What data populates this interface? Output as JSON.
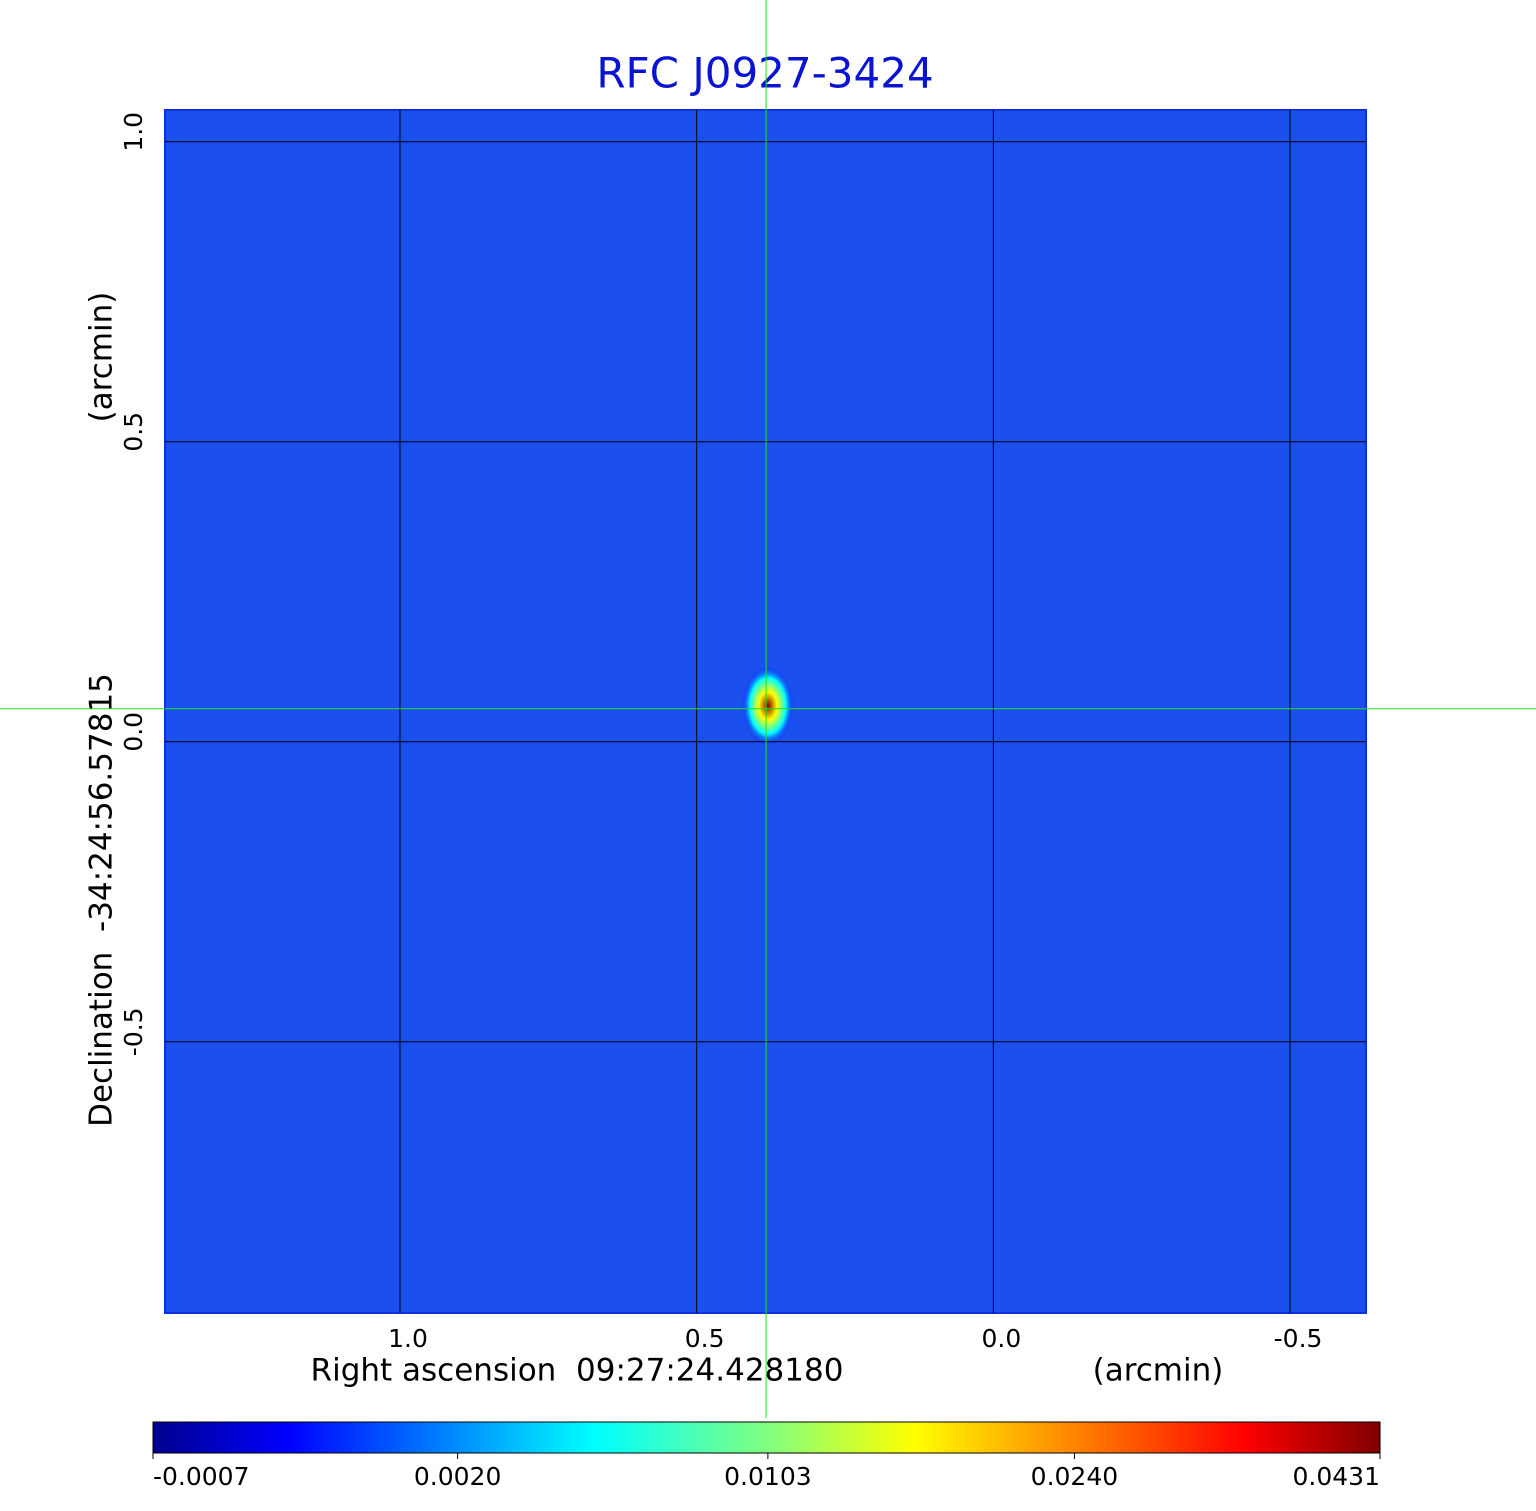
{
  "chart_data": {
    "type": "heatmap",
    "title": "RFC J0927-3424",
    "x_label": "Right ascension  09:27:24.428180",
    "x_unit": "(arcmin)",
    "y_label": "Declination  -34:24:56.57815",
    "y_unit": "(arcmin)",
    "xlim": [
      1.396,
      -0.628
    ],
    "ylim": [
      -0.952,
      1.053
    ],
    "xticks": [
      {
        "value": 1,
        "label": "1.0"
      },
      {
        "value": 0.5,
        "label": "0.5"
      },
      {
        "value": 0,
        "label": "0.0"
      },
      {
        "value": -0.5,
        "label": "-0.5"
      }
    ],
    "yticks": [
      {
        "value": 1,
        "label": "1.0"
      },
      {
        "value": 0.5,
        "label": "0.5"
      },
      {
        "value": 0,
        "label": "0.0"
      },
      {
        "value": -0.5,
        "label": "-0.5"
      }
    ],
    "grid": true,
    "colormap": "jet",
    "colorbar_scale": "sqrt",
    "colorbar_lim": [
      -0.0007,
      0.0431
    ],
    "colorbar_ticks": [
      {
        "value": -0.0007,
        "label": "-0.0007"
      },
      {
        "value": 0.002,
        "label": "0.0020"
      },
      {
        "value": 0.0103,
        "label": "0.0103"
      },
      {
        "value": 0.024,
        "label": "0.0240"
      },
      {
        "value": 0.0431,
        "label": "0.0431"
      }
    ],
    "source": {
      "x": 0.38,
      "y": 0.06,
      "peak": 0.0431
    },
    "crosshair": {
      "x": 0.383,
      "y": 0.055
    }
  }
}
